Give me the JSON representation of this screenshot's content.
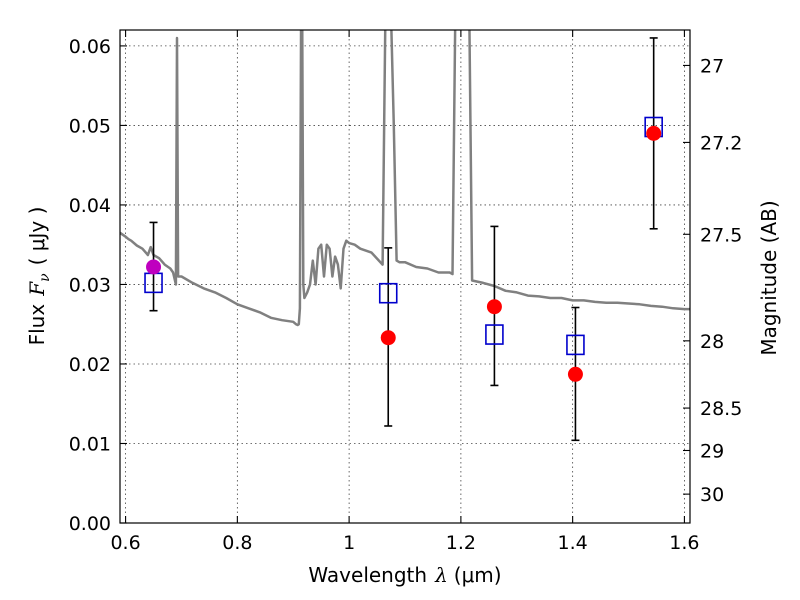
{
  "chart_data": {
    "type": "scatter",
    "xlabel_prefix": "Wavelength",
    "xlabel_symbol": "λ",
    "xlabel_unit": "(μm)",
    "ylabel_prefix": "Flux",
    "ylabel_symbol": "F",
    "ylabel_subscript": "ν",
    "ylabel_unit": "( μJy )",
    "y2label": "Magnitude (AB)",
    "xlim": [
      0.59,
      1.61
    ],
    "ylim": [
      0.0,
      0.062
    ],
    "x_ticks": [
      0.6,
      0.8,
      1.0,
      1.2,
      1.4,
      1.6
    ],
    "x_tick_labels": [
      "0.6",
      "0.8",
      "1",
      "1.2",
      "1.4",
      "1.6"
    ],
    "y_ticks": [
      0.0,
      0.01,
      0.02,
      0.03,
      0.04,
      0.05,
      0.06
    ],
    "y_tick_labels": [
      "0.00",
      "0.01",
      "0.02",
      "0.03",
      "0.04",
      "0.05",
      "0.06"
    ],
    "y2_ticks": [
      27,
      27.2,
      27.5,
      28,
      28.5,
      29,
      30
    ],
    "y2_tick_labels": [
      "27",
      "27.2",
      "27.5",
      "28",
      "28.5",
      "29",
      "30"
    ],
    "grid": true,
    "colors": {
      "model": "#808080",
      "observed": "#ff0000",
      "observed_first": "#bf00bf",
      "model_flux": "#0000cc",
      "error_bar": "#000000"
    },
    "series": [
      {
        "type": "line",
        "role": "model spectrum",
        "x": [
          0.59,
          0.6,
          0.605,
          0.61,
          0.62,
          0.63,
          0.64,
          0.645,
          0.65,
          0.66,
          0.67,
          0.68,
          0.685,
          0.69,
          0.692,
          0.694,
          0.7,
          0.72,
          0.74,
          0.76,
          0.78,
          0.8,
          0.82,
          0.84,
          0.86,
          0.88,
          0.9,
          0.905,
          0.908,
          0.91,
          0.912,
          0.914,
          0.916,
          0.918,
          0.92,
          0.925,
          0.93,
          0.935,
          0.94,
          0.945,
          0.95,
          0.955,
          0.96,
          0.965,
          0.97,
          0.975,
          0.98,
          0.985,
          0.99,
          0.995,
          1.0,
          1.01,
          1.02,
          1.04,
          1.06,
          1.065,
          1.07,
          1.075,
          1.08,
          1.085,
          1.09,
          1.1,
          1.12,
          1.14,
          1.16,
          1.18,
          1.185,
          1.19,
          1.195,
          1.2,
          1.205,
          1.21,
          1.215,
          1.22,
          1.24,
          1.26,
          1.28,
          1.3,
          1.32,
          1.34,
          1.36,
          1.38,
          1.4,
          1.42,
          1.44,
          1.46,
          1.48,
          1.5,
          1.52,
          1.54,
          1.56,
          1.58,
          1.6,
          1.61
        ],
        "y": [
          0.0365,
          0.036,
          0.0357,
          0.0355,
          0.0349,
          0.0345,
          0.0337,
          0.0347,
          0.0337,
          0.0333,
          0.0325,
          0.032,
          0.0315,
          0.03,
          0.061,
          0.031,
          0.031,
          0.0302,
          0.0295,
          0.029,
          0.0283,
          0.0275,
          0.027,
          0.0265,
          0.0258,
          0.0255,
          0.0253,
          0.025,
          0.0249,
          0.025,
          0.027,
          0.064,
          0.064,
          0.03,
          0.0283,
          0.029,
          0.03,
          0.033,
          0.03,
          0.0345,
          0.035,
          0.031,
          0.035,
          0.0345,
          0.031,
          0.0335,
          0.0325,
          0.0295,
          0.0345,
          0.0355,
          0.0352,
          0.035,
          0.0345,
          0.034,
          0.0325,
          0.064,
          0.064,
          0.064,
          0.05,
          0.033,
          0.0328,
          0.0328,
          0.0322,
          0.032,
          0.0315,
          0.0315,
          0.0313,
          0.064,
          0.064,
          0.064,
          0.064,
          0.064,
          0.064,
          0.0305,
          0.0302,
          0.0298,
          0.0292,
          0.029,
          0.0286,
          0.0285,
          0.0283,
          0.0283,
          0.028,
          0.028,
          0.0278,
          0.0277,
          0.0277,
          0.0276,
          0.0275,
          0.0273,
          0.0272,
          0.027,
          0.0269,
          0.0269
        ]
      },
      {
        "type": "scatter",
        "role": "observed flux",
        "marker": "circle",
        "x": [
          0.65,
          1.07,
          1.26,
          1.405,
          1.545
        ],
        "y": [
          0.0322,
          0.0233,
          0.0272,
          0.0187,
          0.049
        ],
        "yerr_low": [
          0.0267,
          0.0122,
          0.0173,
          0.0104,
          0.037
        ],
        "yerr_high": [
          0.0378,
          0.0346,
          0.0373,
          0.0271,
          0.061
        ]
      },
      {
        "type": "scatter",
        "role": "model flux",
        "marker": "square-open",
        "x": [
          0.65,
          1.07,
          1.26,
          1.405,
          1.545
        ],
        "y": [
          0.0302,
          0.0289,
          0.0237,
          0.0224,
          0.0498
        ]
      }
    ]
  }
}
